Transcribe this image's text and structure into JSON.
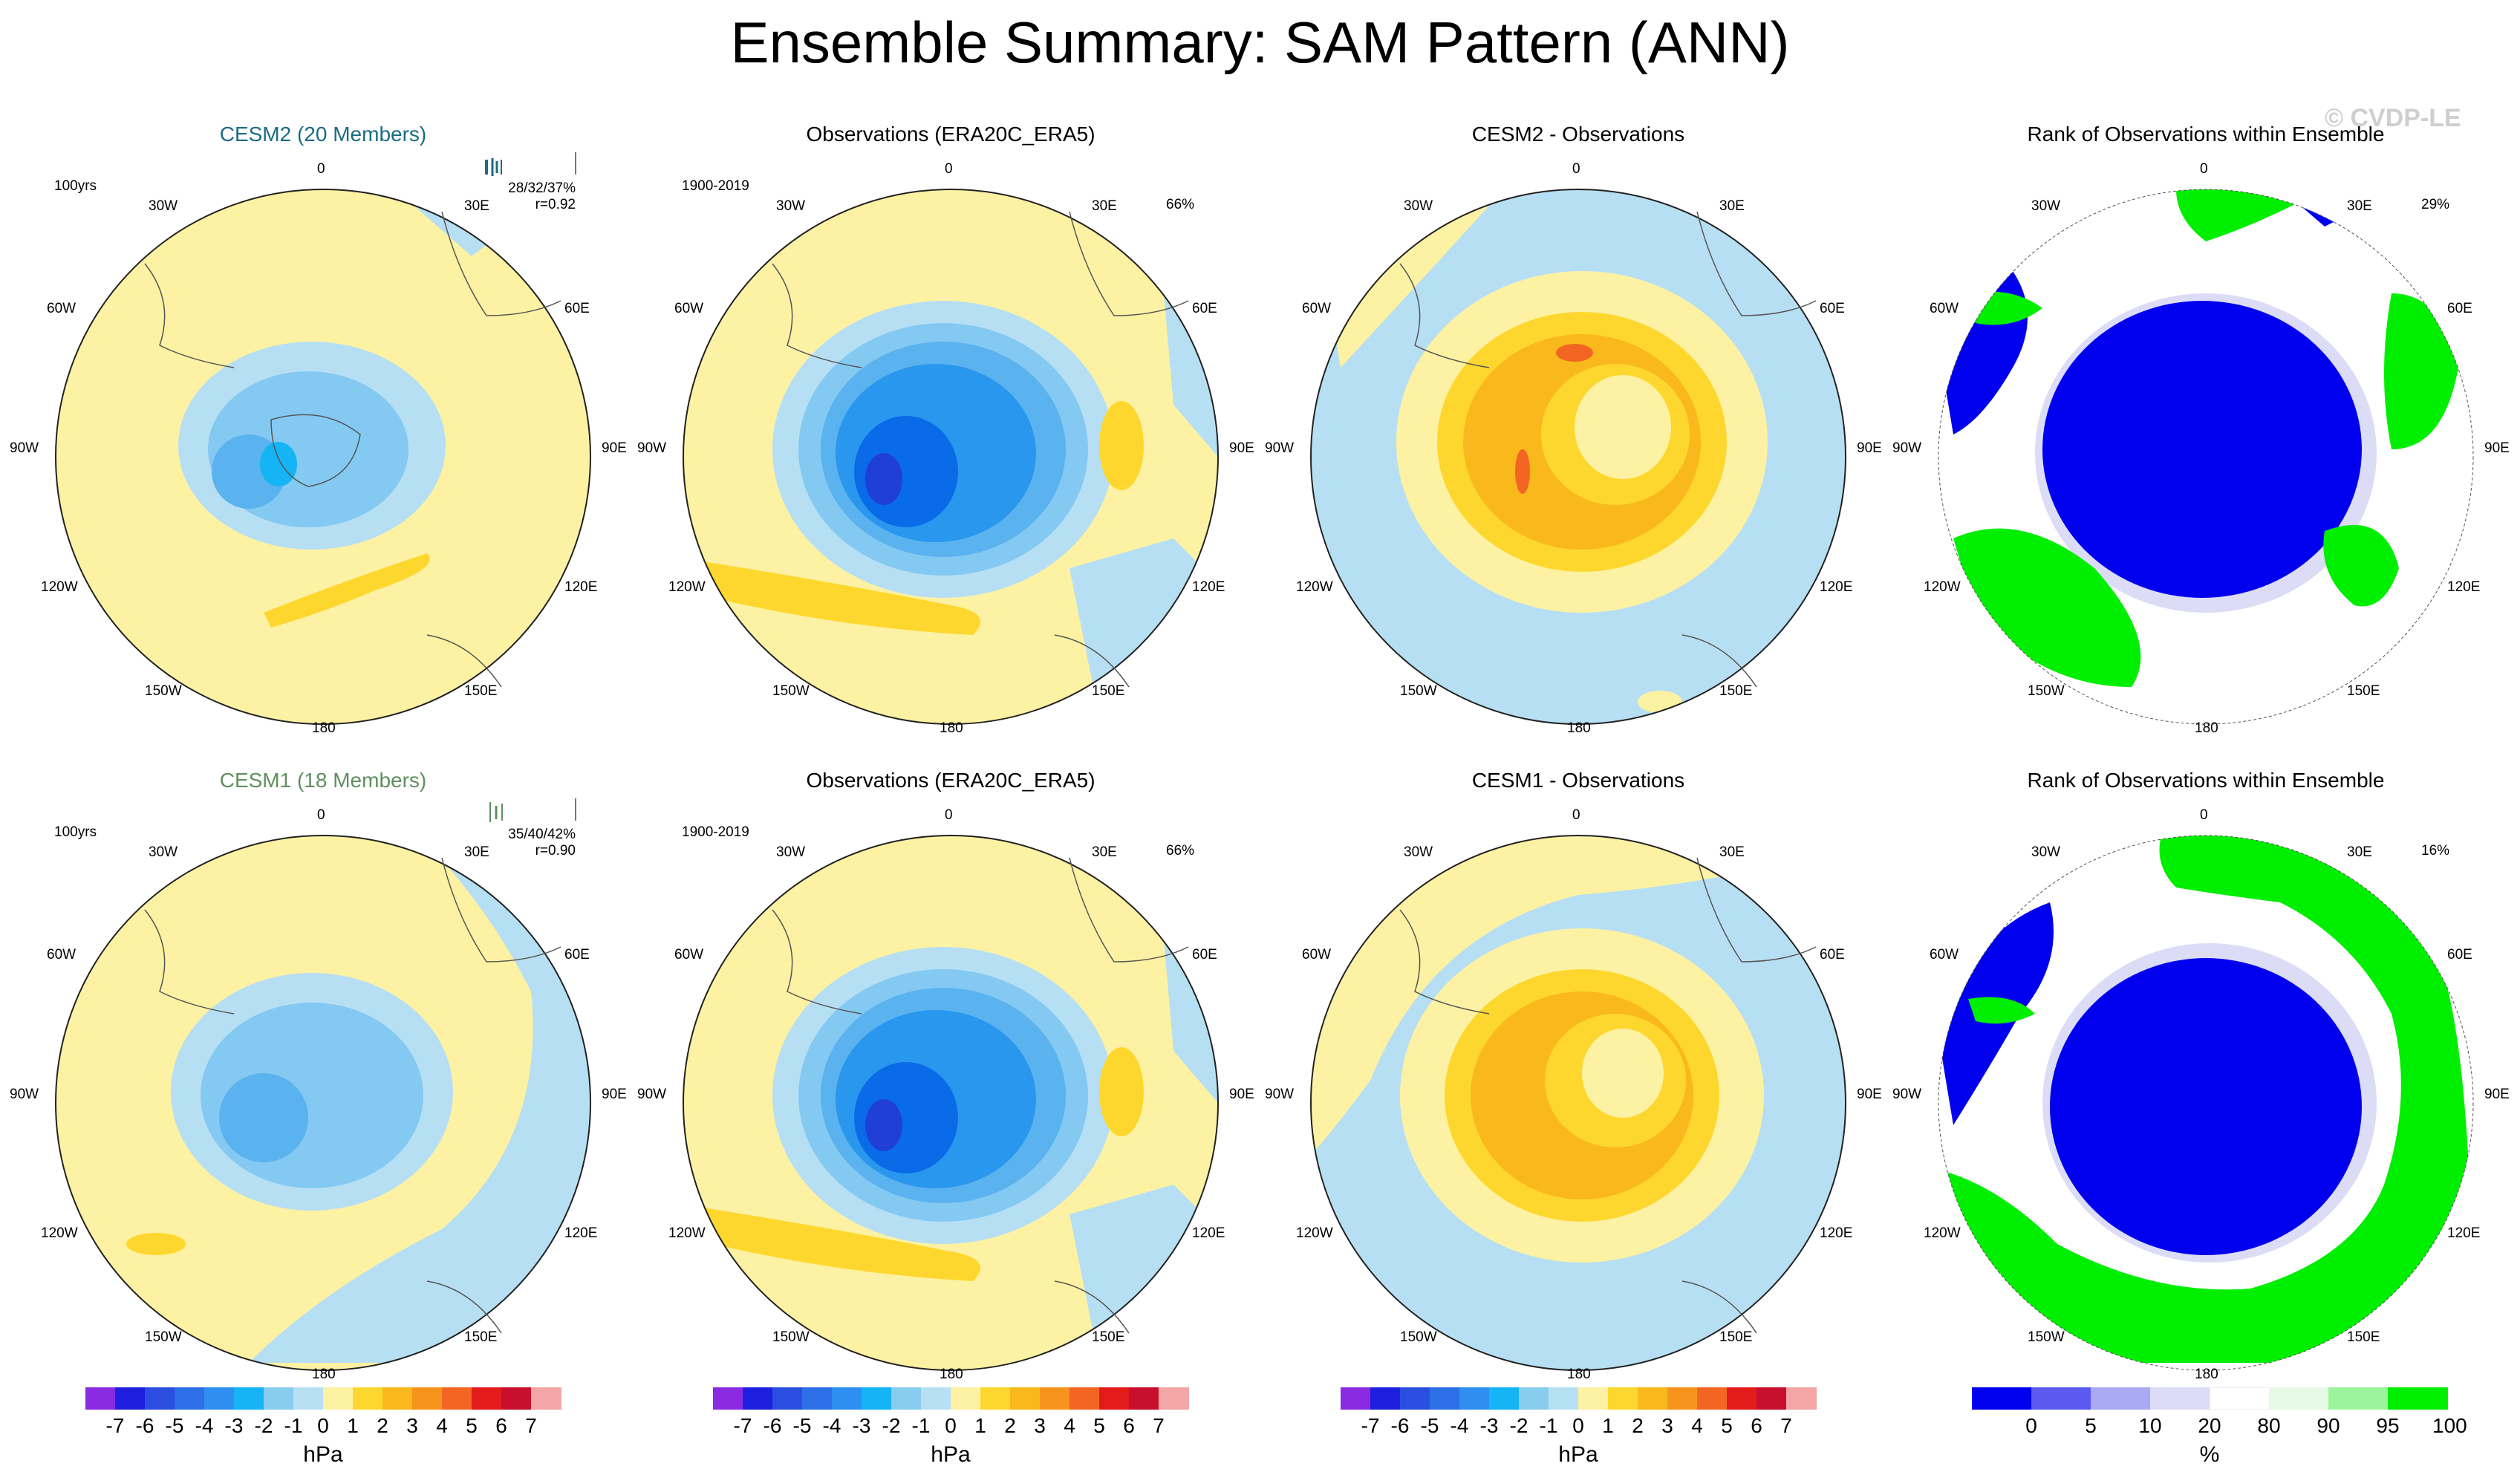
{
  "title": "Ensemble Summary: SAM Pattern (ANN)",
  "watermark": "© CVDP-LE",
  "colors": {
    "ocean_light_blue": "#b7dff3",
    "pale_yellow": "#fdf2a3",
    "yellow": "#fed72e",
    "orange": "#f9a81c",
    "blue1": "#84c9f2",
    "blue2": "#5ab2ef",
    "blue3": "#2a97ee",
    "blue4": "#0a6be8",
    "rank_blue": "#0000ee",
    "rank_green": "#00ee00"
  },
  "longitude_labels": [
    "0",
    "30E",
    "60E",
    "90E",
    "120E",
    "150E",
    "180",
    "150W",
    "120W",
    "90W",
    "60W",
    "30W"
  ],
  "rows": [
    {
      "model": {
        "title": "CESM2 (20 Members)",
        "period": "100yrs",
        "stats": "28/32/37%",
        "corr": "r=0.92"
      },
      "obs": {
        "title": "Observations (ERA20C_ERA5)",
        "period": "1900-2019",
        "variance": "66%"
      },
      "diff": {
        "title": "CESM2 - Observations"
      },
      "rank": {
        "title": "Rank of Observations within Ensemble",
        "percent": "29%"
      }
    },
    {
      "model": {
        "title": "CESM1 (18 Members)",
        "period": "100yrs",
        "stats": "35/40/42%",
        "corr": "r=0.90"
      },
      "obs": {
        "title": "Observations (ERA20C_ERA5)",
        "period": "1900-2019",
        "variance": "66%"
      },
      "diff": {
        "title": "CESM1 - Observations"
      },
      "rank": {
        "title": "Rank of Observations within Ensemble",
        "percent": "16%"
      }
    }
  ],
  "colorbar_hpa": {
    "ticks": [
      "-7",
      "-6",
      "-5",
      "-4",
      "-3",
      "-2",
      "-1",
      "0",
      "1",
      "2",
      "3",
      "4",
      "5",
      "6",
      "7"
    ],
    "unit": "hPa",
    "colors": [
      "#8a2be2",
      "#1f1fe0",
      "#2a4fe0",
      "#2d6fe6",
      "#2f8ff0",
      "#14b4f5",
      "#88ccee",
      "#b8e0f5",
      "#fdf2a3",
      "#fed72e",
      "#f9b81c",
      "#f7941d",
      "#f26522",
      "#e31b1b",
      "#c8102e",
      "#f4a6a6"
    ]
  },
  "colorbar_rank": {
    "ticks": [
      "0",
      "5",
      "10",
      "20",
      "80",
      "90",
      "95",
      "100"
    ],
    "unit": "%",
    "colors": [
      "#0000ee",
      "#5a5af0",
      "#a9a9f4",
      "#dcdcf7",
      "#ffffff",
      "#e6fae6",
      "#9cf59c",
      "#00ee00"
    ]
  }
}
